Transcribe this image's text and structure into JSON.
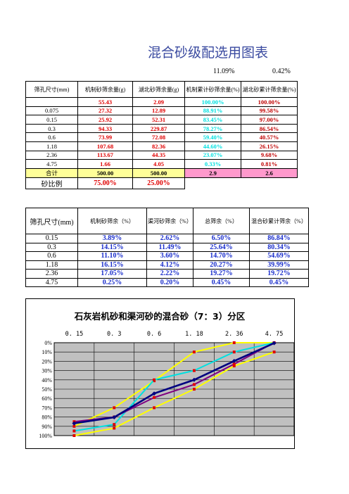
{
  "title": "混合砂级配选用图表",
  "pct_left": "11.09%",
  "pct_right": "0.42%",
  "table1": {
    "headers": [
      "筛孔尺寸(mm)",
      "机制砂筛余量(g)",
      "湖北砂筛余量(g)",
      "机制累计砂筛余量(%)",
      "湖北砂累计筛余量(%)"
    ],
    "rows": [
      [
        "",
        "55.43",
        "2.09",
        "100.00%",
        "100.00%"
      ],
      [
        "0.075",
        "27.32",
        "12.89",
        "88.91%",
        "99.58%"
      ],
      [
        "0.15",
        "25.92",
        "52.31",
        "83.45%",
        "97.00%"
      ],
      [
        "0.3",
        "94.33",
        "229.87",
        "78.27%",
        "86.54%"
      ],
      [
        "0.6",
        "73.99",
        "72.08",
        "59.40%",
        "40.57%"
      ],
      [
        "1.18",
        "107.68",
        "82.36",
        "44.60%",
        "26.15%"
      ],
      [
        "2.36",
        "113.67",
        "44.35",
        "23.07%",
        "9.68%"
      ],
      [
        "4.75",
        "1.66",
        "4.05",
        "0.33%",
        "0.81%"
      ]
    ],
    "total": [
      "合计",
      "500.00",
      "500.00",
      "2.9",
      "2.6"
    ],
    "ratio": [
      "砂比例",
      "75.00%",
      "25.00%"
    ]
  },
  "table2": {
    "headers": [
      "筛孔尺寸(mm)",
      "机制砂筛余（%）",
      "渠河砂筛余（%）",
      "总筛余（%）",
      "混合砂累计筛余（%）"
    ],
    "rows": [
      [
        "0.15",
        "3.89%",
        "2.62%",
        "6.50%",
        "86.84%"
      ],
      [
        "0.3",
        "14.15%",
        "11.49%",
        "25.64%",
        "80.34%"
      ],
      [
        "0.6",
        "11.10%",
        "3.60%",
        "14.70%",
        "54.69%"
      ],
      [
        "1.18",
        "16.15%",
        "4.12%",
        "20.27%",
        "39.99%"
      ],
      [
        "2.36",
        "17.05%",
        "2.22%",
        "19.27%",
        "19.72%"
      ],
      [
        "4.75",
        "0.25%",
        "0.20%",
        "0.45%",
        "0.45%"
      ]
    ]
  },
  "chart_data": {
    "type": "line",
    "title": "石灰岩机砂和渠河砂的混合砂（7：3）分区",
    "categories": [
      "0. 15",
      "0. 3",
      "0. 6",
      "1. 18",
      "2. 36",
      "4. 75"
    ],
    "y_ticks": [
      "0%",
      "10%",
      "20%",
      "30%",
      "40%",
      "50%",
      "60%",
      "70%",
      "80%",
      "90%",
      "100%"
    ],
    "ylim": [
      0,
      100
    ],
    "y_inverted": true,
    "grid": true,
    "series": [
      {
        "color": "#ffff00",
        "marker": "#e00000",
        "values": [
          100,
          92,
          70,
          50,
          25,
          10
        ]
      },
      {
        "color": "#ffff00",
        "marker": "#e00000",
        "values": [
          90,
          70,
          41,
          10,
          0,
          0
        ]
      },
      {
        "color": "#00e0e0",
        "marker": "#e00000",
        "values": [
          95,
          88,
          40,
          30,
          10,
          0
        ]
      },
      {
        "color": "#800080",
        "marker": "#e00000",
        "values": [
          85,
          80,
          59,
          45,
          23,
          0
        ]
      },
      {
        "color": "#000080",
        "marker": "#000080",
        "values": [
          86.84,
          80.34,
          54.69,
          39.99,
          19.72,
          0.45
        ]
      }
    ]
  }
}
